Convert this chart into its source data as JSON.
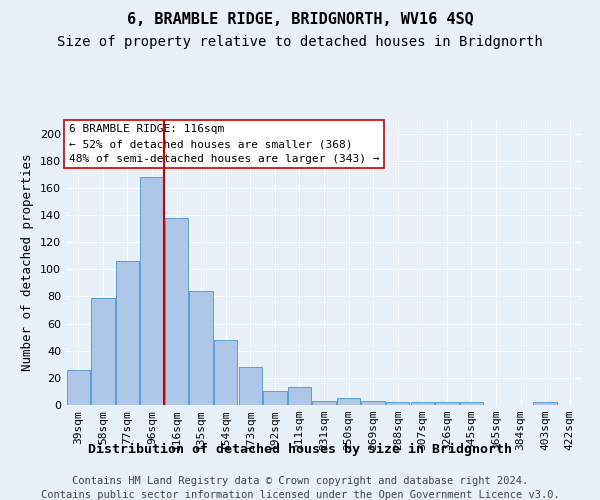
{
  "title": "6, BRAMBLE RIDGE, BRIDGNORTH, WV16 4SQ",
  "subtitle": "Size of property relative to detached houses in Bridgnorth",
  "xlabel": "Distribution of detached houses by size in Bridgnorth",
  "ylabel": "Number of detached properties",
  "categories": [
    "39sqm",
    "58sqm",
    "77sqm",
    "96sqm",
    "116sqm",
    "135sqm",
    "154sqm",
    "173sqm",
    "192sqm",
    "211sqm",
    "231sqm",
    "250sqm",
    "269sqm",
    "288sqm",
    "307sqm",
    "326sqm",
    "345sqm",
    "365sqm",
    "384sqm",
    "403sqm",
    "422sqm"
  ],
  "values": [
    26,
    79,
    106,
    168,
    138,
    84,
    48,
    28,
    10,
    13,
    3,
    5,
    3,
    2,
    2,
    2,
    2,
    0,
    0,
    2,
    0
  ],
  "bar_color": "#aec6e8",
  "bar_edge_color": "#5a9fd4",
  "vline_color": "#cc0000",
  "ylim": [
    0,
    210
  ],
  "yticks": [
    0,
    20,
    40,
    60,
    80,
    100,
    120,
    140,
    160,
    180,
    200
  ],
  "annotation_box_edge_color": "#cc0000",
  "footer_line1": "Contains HM Land Registry data © Crown copyright and database right 2024.",
  "footer_line2": "Contains public sector information licensed under the Open Government Licence v3.0.",
  "background_color": "#e8f0f8",
  "title_fontsize": 11,
  "subtitle_fontsize": 10,
  "axis_label_fontsize": 9,
  "tick_fontsize": 8,
  "footer_fontsize": 7.5
}
